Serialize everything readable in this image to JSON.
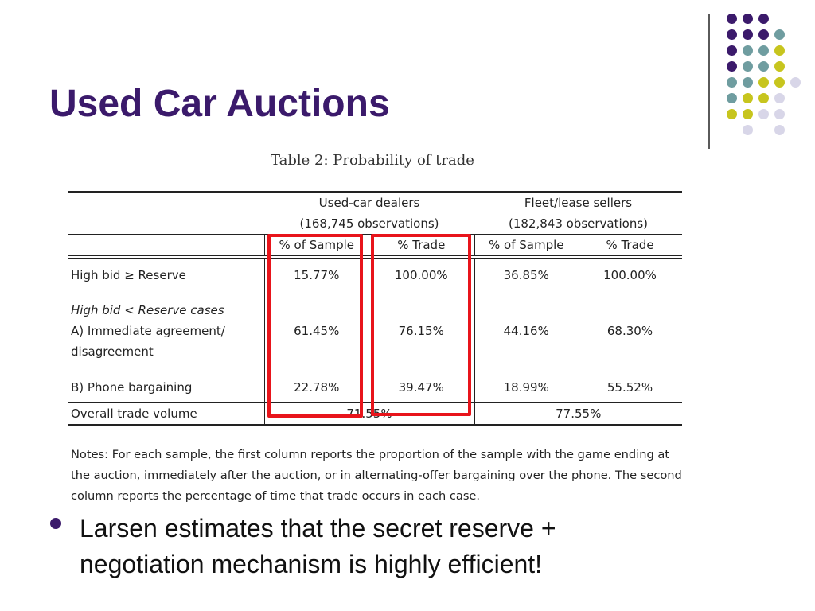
{
  "slide": {
    "title": "Used Car Auctions",
    "bullet": "Larsen estimates that the secret reserve + negotiation mechanism is highly efficient!"
  },
  "decoration": {
    "dot_colors": [
      "#3b1a6b",
      "#6f9da0",
      "#c7c51e",
      "#d8d6e8"
    ]
  },
  "highlight_color": "#e8141b",
  "table": {
    "caption": "Table 2: Probability of trade",
    "groups": [
      {
        "name": "Used-car dealers",
        "obs": "(168,745 observations)"
      },
      {
        "name": "Fleet/lease sellers",
        "obs": "(182,843 observations)"
      }
    ],
    "columns": [
      "% of Sample",
      "% Trade",
      "% of Sample",
      "% Trade"
    ],
    "rows": {
      "high_bid_reserve": {
        "label": "High bid ≥ Reserve",
        "values": [
          "15.77%",
          "100.00%",
          "36.85%",
          "100.00%"
        ]
      },
      "section_label": "High bid < Reserve cases",
      "immediate": {
        "label_line1": "A) Immediate agreement/",
        "label_line2": "disagreement",
        "values": [
          "61.45%",
          "76.15%",
          "44.16%",
          "68.30%"
        ]
      },
      "phone": {
        "label": "B) Phone bargaining",
        "values": [
          "22.78%",
          "39.47%",
          "18.99%",
          "55.52%"
        ]
      },
      "overall": {
        "label": "Overall trade volume",
        "values": [
          "71.55%",
          "77.55%"
        ]
      }
    },
    "notes": "Notes: For each sample, the first column reports the proportion of the sample with the game ending at the auction, immediately after the auction, or in alternating-offer bargaining over the phone. The second column reports the percentage of time that trade occurs in each case."
  }
}
